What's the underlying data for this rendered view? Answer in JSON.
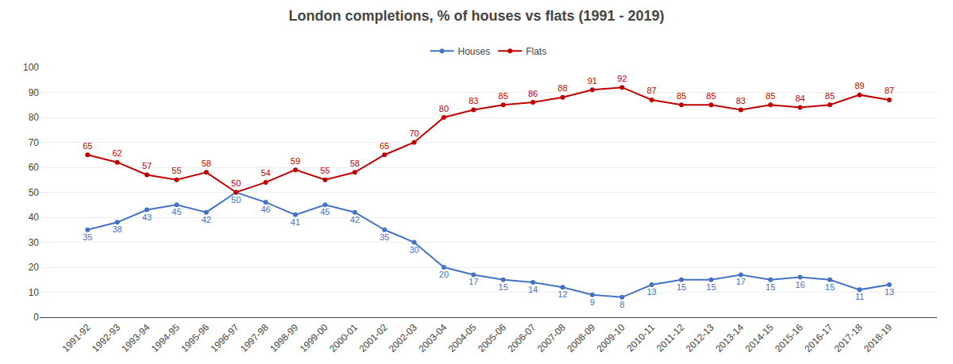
{
  "chart_data": {
    "type": "line",
    "title": "London completions, % of houses vs flats (1991 - 2019)",
    "categories": [
      "1991-92",
      "1992-93",
      "1993-94",
      "1994-95",
      "1995-96",
      "1996-97",
      "1997-98",
      "1998-99",
      "1999-00",
      "2000-01",
      "2001-02",
      "2002-03",
      "2003-04",
      "2004-05",
      "2005-06",
      "2006-07",
      "2007-08",
      "2008-09",
      "2009-10",
      "2010-11",
      "2011-12",
      "2012-13",
      "2013-14",
      "2014-15",
      "2015-16",
      "2016-17",
      "2017-18",
      "2018-19"
    ],
    "series": [
      {
        "name": "Houses",
        "color": "#4472C4",
        "marker": "circle",
        "values": [
          35,
          38,
          43,
          45,
          42,
          50,
          46,
          41,
          45,
          42,
          35,
          30,
          20,
          17,
          15,
          14,
          12,
          9,
          8,
          13,
          15,
          15,
          17,
          15,
          16,
          15,
          11,
          13
        ]
      },
      {
        "name": "Flats",
        "color": "#C00000",
        "marker": "circle",
        "values": [
          65,
          62,
          57,
          55,
          58,
          50,
          54,
          59,
          55,
          58,
          65,
          70,
          80,
          83,
          85,
          86,
          88,
          91,
          92,
          87,
          85,
          85,
          83,
          85,
          84,
          85,
          89,
          87
        ]
      }
    ],
    "ylim": [
      0,
      100
    ],
    "yticks": [
      0,
      10,
      20,
      30,
      40,
      50,
      60,
      70,
      80,
      90,
      100
    ],
    "grid": true,
    "legend": "top",
    "data_labels": true
  }
}
